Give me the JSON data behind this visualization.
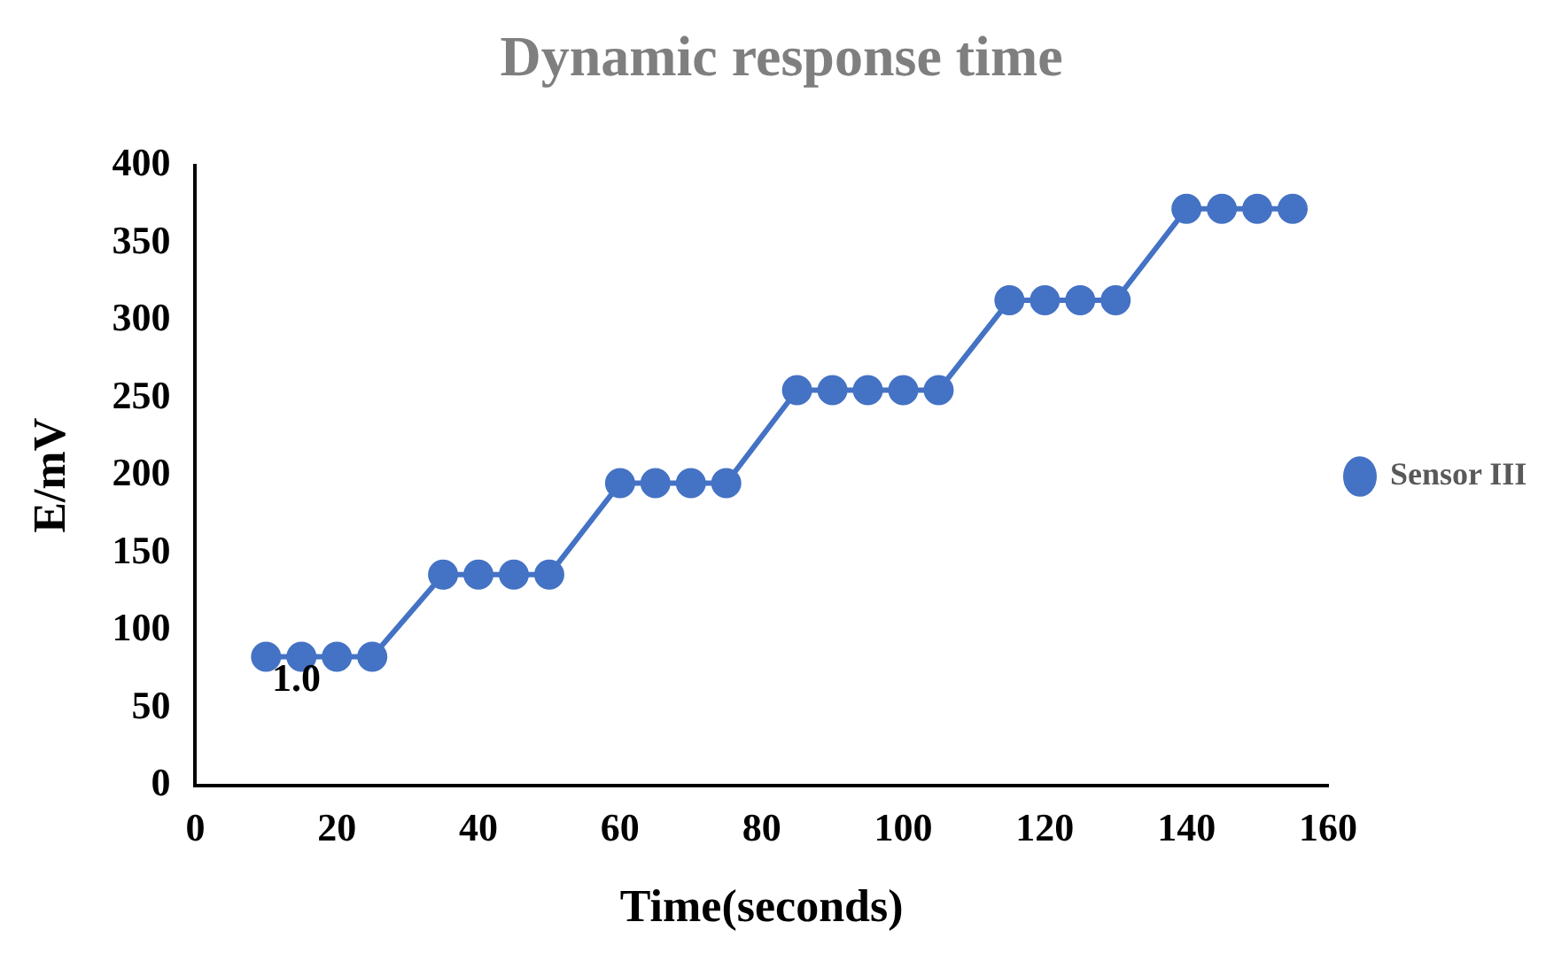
{
  "chart_data": {
    "type": "line",
    "title": "Dynamic response time",
    "xlabel": "Time(seconds)",
    "ylabel": "E/mV",
    "x": [
      10,
      15,
      20,
      25,
      35,
      40,
      45,
      50,
      60,
      65,
      70,
      75,
      85,
      90,
      95,
      100,
      105,
      115,
      120,
      125,
      130,
      140,
      145,
      150,
      155
    ],
    "series": [
      {
        "name": "Sensor III",
        "color": "#4472c4",
        "values": [
          83,
          83,
          83,
          83,
          136,
          136,
          136,
          136,
          195,
          195,
          195,
          195,
          255,
          255,
          255,
          255,
          255,
          313,
          313,
          313,
          313,
          372,
          372,
          372,
          372
        ]
      }
    ],
    "xlim": [
      0,
      160
    ],
    "xticks": [
      0,
      20,
      40,
      60,
      80,
      100,
      120,
      140,
      160
    ],
    "ylim": [
      0,
      400
    ],
    "yticks": [
      0,
      50,
      100,
      150,
      200,
      250,
      300,
      350,
      400
    ],
    "grid": false,
    "legend": "right",
    "marker": "circle",
    "line_style": "solid",
    "annotations": [
      "1.0"
    ]
  }
}
